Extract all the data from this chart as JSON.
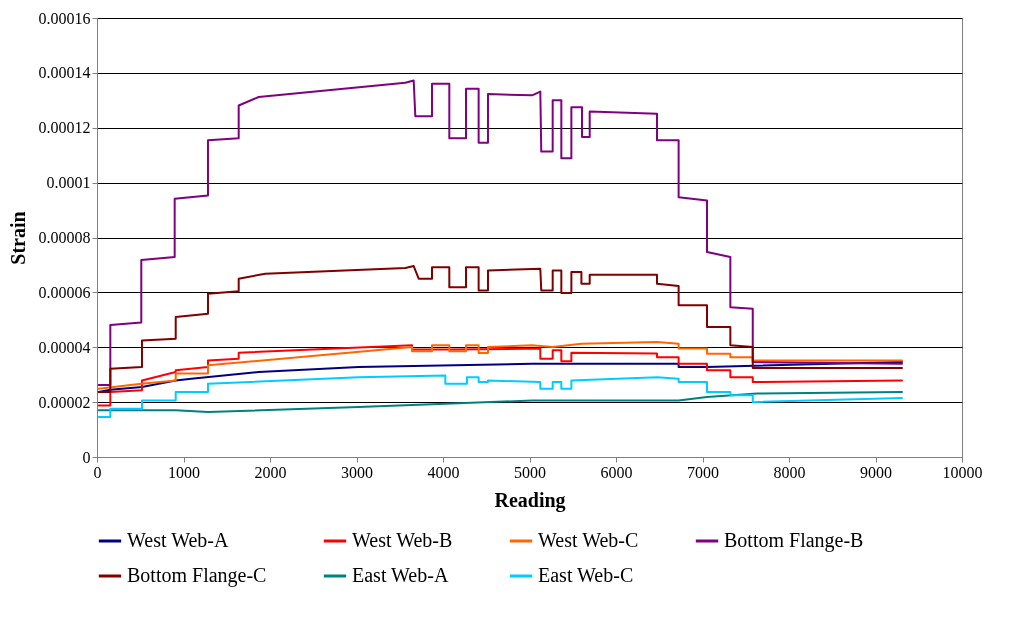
{
  "chart_data": {
    "type": "line",
    "xlabel": "Reading",
    "ylabel": "Strain",
    "xlim": [
      0,
      10000
    ],
    "xticks": [
      0,
      1000,
      2000,
      3000,
      4000,
      5000,
      6000,
      7000,
      8000,
      9000,
      10000
    ],
    "ylim": [
      0,
      0.00016
    ],
    "yticks": [
      {
        "value": 0,
        "label": "0"
      },
      {
        "value": 2e-05,
        "label": "0.00002"
      },
      {
        "value": 4e-05,
        "label": "0.00004"
      },
      {
        "value": 6e-05,
        "label": "0.00006"
      },
      {
        "value": 8e-05,
        "label": "0.00008"
      },
      {
        "value": 0.0001,
        "label": "0.0001"
      },
      {
        "value": 0.00012,
        "label": "0.00012"
      },
      {
        "value": 0.00014,
        "label": "0.00014"
      },
      {
        "value": 0.00016,
        "label": "0.00016"
      }
    ],
    "grid": "y",
    "legend": "bottom",
    "line_style": "solid",
    "marker": "none",
    "series": [
      {
        "name": "West Web-A",
        "color": "#000080",
        "x": [
          20,
          154,
          520,
          910,
          1090,
          1869,
          3025,
          5029,
          6724,
          6724,
          7052,
          9306
        ],
        "values": [
          2.37e-05,
          2.45e-05,
          2.55e-05,
          2.79e-05,
          2.85e-05,
          3.1e-05,
          3.28e-05,
          3.4e-05,
          3.4e-05,
          3.28e-05,
          3.28e-05,
          3.46e-05
        ]
      },
      {
        "name": "West Web-B",
        "color": "#ff0000",
        "x": [
          20,
          154,
          154,
          520,
          520,
          910,
          910,
          1283,
          1283,
          1638,
          1638,
          3642,
          3642,
          4073,
          5125,
          5125,
          5268,
          5268,
          5368,
          5368,
          5484,
          5484,
          6474,
          6474,
          6724,
          6724,
          7052,
          7052,
          7322,
          7322,
          7581,
          7581,
          9306
        ],
        "values": [
          1.88e-05,
          1.88e-05,
          2.37e-05,
          2.43e-05,
          2.79e-05,
          3.1e-05,
          3.16e-05,
          3.28e-05,
          3.52e-05,
          3.58e-05,
          3.8e-05,
          4.07e-05,
          3.92e-05,
          3.92e-05,
          3.95e-05,
          3.58e-05,
          3.58e-05,
          3.89e-05,
          3.89e-05,
          3.49e-05,
          3.49e-05,
          3.8e-05,
          3.77e-05,
          3.64e-05,
          3.64e-05,
          3.4e-05,
          3.4e-05,
          3.16e-05,
          3.16e-05,
          2.91e-05,
          2.91e-05,
          2.73e-05,
          2.79e-05
        ]
      },
      {
        "name": "West Web-C",
        "color": "#ff6600",
        "x": [
          20,
          512,
          910,
          910,
          1283,
          1283,
          3642,
          3642,
          3873,
          3873,
          4073,
          4073,
          4266,
          4266,
          4412,
          4412,
          4520,
          4520,
          5029,
          5268,
          5600,
          6474,
          6724,
          6724,
          7052,
          7052,
          7322,
          7322,
          7581,
          7581,
          9306
        ],
        "values": [
          2.49e-05,
          2.67e-05,
          2.79e-05,
          3.04e-05,
          3.04e-05,
          3.34e-05,
          4.01e-05,
          3.85e-05,
          3.85e-05,
          4.07e-05,
          4.07e-05,
          3.85e-05,
          3.85e-05,
          4.07e-05,
          4.07e-05,
          3.79e-05,
          3.79e-05,
          4.01e-05,
          4.07e-05,
          4.01e-05,
          4.13e-05,
          4.19e-05,
          4.13e-05,
          3.95e-05,
          3.95e-05,
          3.76e-05,
          3.76e-05,
          3.64e-05,
          3.64e-05,
          3.52e-05,
          3.52e-05
        ]
      },
      {
        "name": "Bottom Flange-B",
        "color": "#800080",
        "x": [
          20,
          154,
          154,
          512,
          512,
          898,
          898,
          1283,
          1283,
          1638,
          1638,
          1869,
          3564,
          3661,
          3680,
          3873,
          3873,
          4073,
          4073,
          4266,
          4266,
          4412,
          4412,
          4520,
          4520,
          5029,
          5125,
          5136,
          5268,
          5268,
          5368,
          5368,
          5484,
          5484,
          5607,
          5607,
          5696,
          5696,
          6474,
          6474,
          6724,
          6724,
          7052,
          7052,
          7322,
          7322,
          7581,
          7581,
          9306
        ],
        "values": [
          2.62e-05,
          2.62e-05,
          4.81e-05,
          4.9e-05,
          7.18e-05,
          7.29e-05,
          9.41e-05,
          9.53e-05,
          0.0001154,
          0.0001162,
          0.0001281,
          0.0001312,
          0.0001364,
          0.0001372,
          0.0001242,
          0.0001242,
          0.000136,
          0.000136,
          0.0001162,
          0.0001162,
          0.0001342,
          0.0001342,
          0.0001145,
          0.0001145,
          0.0001323,
          0.0001318,
          0.0001332,
          0.0001113,
          0.0001113,
          0.00013,
          0.00013,
          0.0001089,
          0.0001089,
          0.0001275,
          0.0001275,
          0.0001166,
          0.0001166,
          0.0001259,
          0.0001251,
          0.0001154,
          0.0001154,
          9.47e-05,
          9.35e-05,
          7.47e-05,
          7.29e-05,
          5.46e-05,
          5.4e-05,
          3.46e-05,
          3.4e-05
        ]
      },
      {
        "name": "Bottom Flange-C",
        "color": "#800000",
        "x": [
          20,
          154,
          154,
          520,
          520,
          910,
          910,
          1283,
          1283,
          1638,
          1638,
          1946,
          3564,
          3661,
          3719,
          3873,
          3873,
          4073,
          4073,
          4266,
          4266,
          4412,
          4412,
          4520,
          4520,
          5125,
          5136,
          5268,
          5268,
          5368,
          5368,
          5484,
          5484,
          5600,
          5600,
          5696,
          5696,
          6474,
          6474,
          6724,
          6724,
          7052,
          7052,
          7322,
          7322,
          7581,
          7581,
          9306
        ],
        "values": [
          2.37e-05,
          2.37e-05,
          3.22e-05,
          3.28e-05,
          4.25e-05,
          4.31e-05,
          5.1e-05,
          5.22e-05,
          5.95e-05,
          6.04e-05,
          6.5e-05,
          6.68e-05,
          6.89e-05,
          6.96e-05,
          6.5e-05,
          6.5e-05,
          6.92e-05,
          6.92e-05,
          6.19e-05,
          6.19e-05,
          6.92e-05,
          6.92e-05,
          6.07e-05,
          6.07e-05,
          6.8e-05,
          6.86e-05,
          6.07e-05,
          6.07e-05,
          6.8e-05,
          6.8e-05,
          5.98e-05,
          5.98e-05,
          6.74e-05,
          6.74e-05,
          6.31e-05,
          6.31e-05,
          6.64e-05,
          6.64e-05,
          6.31e-05,
          6.23e-05,
          5.53e-05,
          5.53e-05,
          4.74e-05,
          4.74e-05,
          4.07e-05,
          4.01e-05,
          3.24e-05,
          3.24e-05
        ]
      },
      {
        "name": "East Web-A",
        "color": "#008080",
        "x": [
          20,
          910,
          1283,
          3025,
          4027,
          5029,
          5684,
          6724,
          7052,
          7630,
          9306
        ],
        "values": [
          1.7e-05,
          1.7e-05,
          1.64e-05,
          1.82e-05,
          1.94e-05,
          2.06e-05,
          2.06e-05,
          2.06e-05,
          2.19e-05,
          2.31e-05,
          2.37e-05
        ]
      },
      {
        "name": "East Web-C",
        "color": "#00ccff",
        "x": [
          20,
          154,
          154,
          520,
          520,
          910,
          910,
          1283,
          1283,
          3025,
          4027,
          4027,
          4277,
          4277,
          4412,
          4412,
          4520,
          4520,
          5125,
          5125,
          5268,
          5268,
          5368,
          5368,
          5484,
          5484,
          6474,
          6724,
          6724,
          7052,
          7052,
          7322,
          7322,
          7581,
          7581,
          9306
        ],
        "values": [
          1.46e-05,
          1.46e-05,
          1.76e-05,
          1.76e-05,
          2.06e-05,
          2.06e-05,
          2.37e-05,
          2.37e-05,
          2.67e-05,
          2.91e-05,
          2.97e-05,
          2.67e-05,
          2.67e-05,
          2.91e-05,
          2.91e-05,
          2.73e-05,
          2.73e-05,
          2.79e-05,
          2.73e-05,
          2.49e-05,
          2.49e-05,
          2.73e-05,
          2.73e-05,
          2.49e-05,
          2.49e-05,
          2.79e-05,
          2.91e-05,
          2.85e-05,
          2.73e-05,
          2.73e-05,
          2.37e-05,
          2.37e-05,
          2.25e-05,
          2.25e-05,
          2e-05,
          2.15e-05
        ]
      }
    ]
  }
}
